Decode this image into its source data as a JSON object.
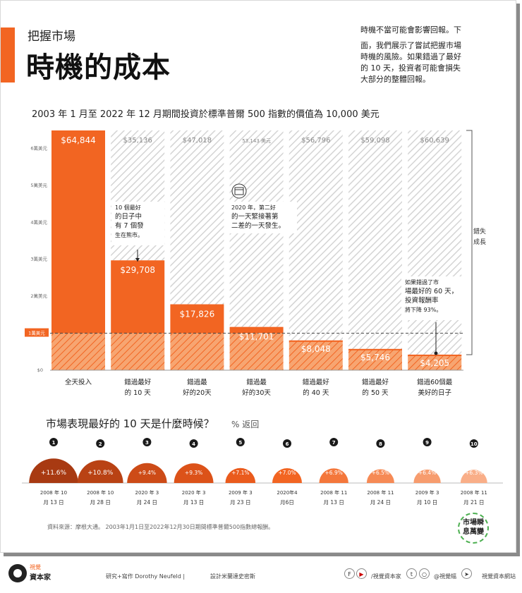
{
  "header": {
    "kicker": "把握市場",
    "title": "時機的成本",
    "intro_line1": "時機不當可能會影響回報。下",
    "intro_line2": "面，我們展示了嘗試把握市場時機的風險。如果錯過了最好的 10 天，投資者可能會損失大部分的整體回報。"
  },
  "chart_data": {
    "type": "bar",
    "title": "2003 年 1 月至 2022 年 12 月期間投資於標準普爾 500 指數的價值為 10,000 美元",
    "ylim": [
      0,
      64844
    ],
    "yticks": [
      {
        "value": 0,
        "label": "$0"
      },
      {
        "value": 10000,
        "label": "1萬美元"
      },
      {
        "value": 20000,
        "label": "2萬美元"
      },
      {
        "value": 30000,
        "label": "3萬美元"
      },
      {
        "value": 40000,
        "label": "4萬美元"
      },
      {
        "value": 50000,
        "label": "5萬美元"
      },
      {
        "value": 60000,
        "label": "6萬美元"
      }
    ],
    "reference_value": 10000,
    "colors": {
      "primary": "#f26522",
      "light": "#f7a571",
      "hatch": "#d9d9d9",
      "dark": "#333333"
    },
    "bars": [
      {
        "category": [
          "全天投入"
        ],
        "value": 64844,
        "label": "$64,844",
        "lost_label": ""
      },
      {
        "category": [
          "錯過最好",
          "的 10 天"
        ],
        "value": 29708,
        "label": "$29,708",
        "lost_label": "$35,136"
      },
      {
        "category": [
          "錯過最",
          "好的20天"
        ],
        "value": 17826,
        "label": "$17,826",
        "lost_label": "$47,018"
      },
      {
        "category": [
          "錯過最",
          "好的30天"
        ],
        "value": 11701,
        "label": "$11,701",
        "lost_label": "53,143 美元"
      },
      {
        "category": [
          "錯過最好",
          "的 40 天"
        ],
        "value": 8048,
        "label": "$8,048",
        "lost_label": "$56,796"
      },
      {
        "category": [
          "錯過最好",
          "的 50 天"
        ],
        "value": 5746,
        "label": "$5,746",
        "lost_label": "$59,098"
      },
      {
        "category": [
          "錯過60個最",
          "美好的日子"
        ],
        "value": 4205,
        "label": "$4,205",
        "lost_label": "$60,639"
      }
    ],
    "bracket_label": [
      "錯失",
      "成長"
    ],
    "annotations": [
      {
        "lines": [
          "10 個最好",
          "的日子中",
          "有 7 個發",
          "生在熊市。"
        ]
      },
      {
        "lines": [
          "2020 年，第二好",
          "的一天緊接著第",
          "二差的一天發生。"
        ]
      },
      {
        "lines": [
          "如果錯過了市",
          "場最好的 60 天，",
          "投資報酬率",
          "將下降 93%。"
        ]
      }
    ]
  },
  "best_days": {
    "title": "市場表現最好的 10 天是什麼時候？",
    "subtitle": "% 返回",
    "days": [
      {
        "rank": "1",
        "pct": "+11.6%",
        "date1": "2008 年 10",
        "date2": "月 13 日",
        "color": "#a83a12",
        "return": 11.6
      },
      {
        "rank": "2",
        "pct": "+10.8%",
        "date1": "2008 年 10",
        "date2": "月 28 日",
        "color": "#b94214",
        "return": 10.8
      },
      {
        "rank": "3",
        "pct": "+9.4%",
        "date1": "2020 年 3",
        "date2": "月 24 日",
        "color": "#cd4b17",
        "return": 9.4
      },
      {
        "rank": "4",
        "pct": "+9.3%",
        "date1": "2020 年 3",
        "date2": "月 13 日",
        "color": "#dc5219",
        "return": 9.3
      },
      {
        "rank": "5",
        "pct": "+7.1%",
        "date1": "2009 年 3",
        "date2": "月 23 日",
        "color": "#ea5b1d",
        "return": 7.1
      },
      {
        "rank": "6",
        "pct": "+7.0%",
        "date1": "2020年4",
        "date2": "月6日",
        "color": "#f26522",
        "return": 7.0
      },
      {
        "rank": "7",
        "pct": "+6.9%",
        "date1": "2008 年 11",
        "date2": "月 13 日",
        "color": "#f4773b",
        "return": 6.9
      },
      {
        "rank": "8",
        "pct": "+6.5%",
        "date1": "2008 年 11",
        "date2": "月 24 日",
        "color": "#f68a55",
        "return": 6.5
      },
      {
        "rank": "9",
        "pct": "+6.4%",
        "date1": "2009 年 3",
        "date2": "月 10 日",
        "color": "#f79c6e",
        "return": 6.4
      },
      {
        "rank": "10",
        "pct": "+6.3%",
        "date1": "2008 年 11",
        "date2": "月 21 日",
        "color": "#f9ae88",
        "return": 6.3
      }
    ]
  },
  "source": "資料來源：摩根大通。 2003年1月1日至2022年12月30日期間標準普爾500指數總報酬。",
  "badge": {
    "line1": "市場瞬",
    "line2": "息萬變"
  },
  "footer": {
    "logo_top": "視覺",
    "logo_name": "資本家",
    "research": "研究+寫作 Dorothy Neufeld |",
    "design": "設計米蘭達史密斯",
    "social1": "/視覺資本家",
    "social2": "@視覺幅",
    "website": "視覺資本網站"
  }
}
